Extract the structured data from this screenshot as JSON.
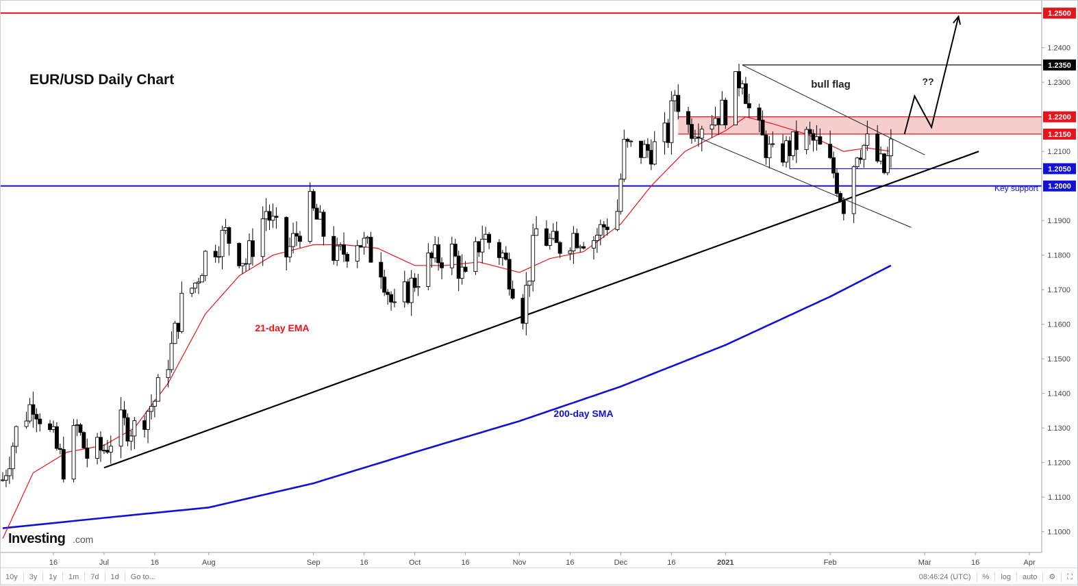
{
  "chart_data": {
    "type": "candlestick",
    "title": "EUR/USD Daily Chart",
    "y_axis": {
      "ticks": [
        "1.1000",
        "1.1100",
        "1.1200",
        "1.1300",
        "1.1400",
        "1.1500",
        "1.1600",
        "1.1700",
        "1.1800",
        "1.1900",
        "1.2100",
        "1.2300",
        "1.2400"
      ],
      "ylim": [
        1.094,
        1.253
      ]
    },
    "x_axis": {
      "ticks": [
        {
          "label": "16",
          "date": "2020-06-16"
        },
        {
          "label": "Jul",
          "date": "2020-07-01"
        },
        {
          "label": "16",
          "date": "2020-07-16"
        },
        {
          "label": "Aug",
          "date": "2020-08-01"
        },
        {
          "label": "Sep",
          "date": "2020-09-01"
        },
        {
          "label": "16",
          "date": "2020-09-16"
        },
        {
          "label": "Oct",
          "date": "2020-10-01"
        },
        {
          "label": "16",
          "date": "2020-10-16"
        },
        {
          "label": "Nov",
          "date": "2020-11-01"
        },
        {
          "label": "16",
          "date": "2020-11-16"
        },
        {
          "label": "Dec",
          "date": "2020-12-01"
        },
        {
          "label": "16",
          "date": "2020-12-16"
        },
        {
          "label": "2021",
          "date": "2021-01-01"
        },
        {
          "label": "Feb",
          "date": "2021-02-01"
        },
        {
          "label": "Mar",
          "date": "2021-03-01"
        },
        {
          "label": "16",
          "date": "2021-03-16"
        },
        {
          "label": "Apr",
          "date": "2021-04-01"
        }
      ],
      "xlim": [
        "2020-06-01",
        "2021-04-02"
      ]
    },
    "close_anchors": [
      [
        "2020-06-01",
        1.115
      ],
      [
        "2020-06-05",
        1.129
      ],
      [
        "2020-06-10",
        1.138
      ],
      [
        "2020-06-16",
        1.126
      ],
      [
        "2020-06-19",
        1.119
      ],
      [
        "2020-06-23",
        1.13
      ],
      [
        "2020-06-26",
        1.122
      ],
      [
        "2020-07-01",
        1.124
      ],
      [
        "2020-07-06",
        1.131
      ],
      [
        "2020-07-10",
        1.13
      ],
      [
        "2020-07-16",
        1.138
      ],
      [
        "2020-07-21",
        1.153
      ],
      [
        "2020-07-24",
        1.166
      ],
      [
        "2020-07-28",
        1.172
      ],
      [
        "2020-07-31",
        1.18
      ],
      [
        "2020-08-06",
        1.186
      ],
      [
        "2020-08-12",
        1.178
      ],
      [
        "2020-08-18",
        1.193
      ],
      [
        "2020-08-24",
        1.18
      ],
      [
        "2020-08-31",
        1.194
      ],
      [
        "2020-09-01",
        1.192
      ],
      [
        "2020-09-08",
        1.179
      ],
      [
        "2020-09-14",
        1.185
      ],
      [
        "2020-09-21",
        1.177
      ],
      [
        "2020-09-25",
        1.163
      ],
      [
        "2020-09-29",
        1.17
      ],
      [
        "2020-10-05",
        1.178
      ],
      [
        "2020-10-12",
        1.181
      ],
      [
        "2020-10-16",
        1.172
      ],
      [
        "2020-10-21",
        1.186
      ],
      [
        "2020-10-27",
        1.18
      ],
      [
        "2020-11-02",
        1.164
      ],
      [
        "2020-11-06",
        1.187
      ],
      [
        "2020-11-12",
        1.182
      ],
      [
        "2020-11-17",
        1.186
      ],
      [
        "2020-11-23",
        1.185
      ],
      [
        "2020-11-30",
        1.193
      ],
      [
        "2020-12-02",
        1.211
      ],
      [
        "2020-12-08",
        1.21
      ],
      [
        "2020-12-11",
        1.211
      ],
      [
        "2020-12-15",
        1.215
      ],
      [
        "2020-12-17",
        1.227
      ],
      [
        "2020-12-21",
        1.217
      ],
      [
        "2020-12-28",
        1.22
      ],
      [
        "2021-01-01",
        1.222
      ],
      [
        "2021-01-06",
        1.233
      ],
      [
        "2021-01-08",
        1.222
      ],
      [
        "2021-01-11",
        1.215
      ],
      [
        "2021-01-15",
        1.208
      ],
      [
        "2021-01-20",
        1.211
      ],
      [
        "2021-01-25",
        1.214
      ],
      [
        "2021-01-28",
        1.212
      ],
      [
        "2021-02-02",
        1.204
      ],
      [
        "2021-02-05",
        1.195
      ],
      [
        "2021-02-09",
        1.211
      ],
      [
        "2021-02-12",
        1.212
      ],
      [
        "2021-02-17",
        1.204
      ],
      [
        "2021-02-19",
        1.211
      ]
    ],
    "ema21_anchors": [
      [
        "2020-06-01",
        1.098
      ],
      [
        "2020-06-10",
        1.117
      ],
      [
        "2020-06-20",
        1.123
      ],
      [
        "2020-07-01",
        1.125
      ],
      [
        "2020-07-10",
        1.13
      ],
      [
        "2020-07-20",
        1.143
      ],
      [
        "2020-07-31",
        1.163
      ],
      [
        "2020-08-10",
        1.174
      ],
      [
        "2020-08-20",
        1.18
      ],
      [
        "2020-09-01",
        1.183
      ],
      [
        "2020-09-10",
        1.183
      ],
      [
        "2020-09-20",
        1.182
      ],
      [
        "2020-10-01",
        1.177
      ],
      [
        "2020-10-10",
        1.177
      ],
      [
        "2020-10-20",
        1.178
      ],
      [
        "2020-11-01",
        1.175
      ],
      [
        "2020-11-10",
        1.179
      ],
      [
        "2020-11-20",
        1.181
      ],
      [
        "2020-12-01",
        1.189
      ],
      [
        "2020-12-10",
        1.2
      ],
      [
        "2020-12-20",
        1.21
      ],
      [
        "2021-01-01",
        1.216
      ],
      [
        "2021-01-07",
        1.22
      ],
      [
        "2021-01-15",
        1.218
      ],
      [
        "2021-01-25",
        1.215
      ],
      [
        "2021-02-05",
        1.21
      ],
      [
        "2021-02-12",
        1.211
      ],
      [
        "2021-02-19",
        1.21
      ]
    ],
    "sma200_anchors": [
      [
        "2020-06-01",
        1.101
      ],
      [
        "2020-07-01",
        1.104
      ],
      [
        "2020-08-01",
        1.107
      ],
      [
        "2020-09-01",
        1.114
      ],
      [
        "2020-10-01",
        1.123
      ],
      [
        "2020-11-01",
        1.132
      ],
      [
        "2020-12-01",
        1.142
      ],
      [
        "2021-01-01",
        1.154
      ],
      [
        "2021-02-01",
        1.168
      ],
      [
        "2021-02-19",
        1.177
      ]
    ],
    "lines": [
      {
        "name": "1.2500",
        "value": 1.25,
        "style": "red"
      },
      {
        "name": "1.2350",
        "value": 1.235,
        "style": "black-thin"
      },
      {
        "name": "1.2200",
        "value": 1.22,
        "style": "zone"
      },
      {
        "name": "1.2150",
        "value": 1.215,
        "style": "zone"
      },
      {
        "name": "1.2050",
        "value": 1.205,
        "style": "blue-thin"
      },
      {
        "name": "1.2000",
        "value": 1.2,
        "style": "blue"
      }
    ],
    "resistance_zone": [
      1.215,
      1.22
    ],
    "trendline": {
      "from": [
        "2020-07-01",
        1.1185
      ],
      "to": [
        "2021-03-17",
        1.21
      ]
    },
    "flag_upper": {
      "from": [
        "2021-01-06",
        1.235
      ],
      "to": [
        "2021-03-01",
        1.209
      ]
    },
    "flag_lower": {
      "from": [
        "2020-12-24",
        1.214
      ],
      "to": [
        "2021-02-25",
        1.188
      ]
    },
    "projection": [
      [
        "2021-02-23",
        1.215
      ],
      [
        "2021-02-26",
        1.226
      ],
      [
        "2021-03-03",
        1.217
      ],
      [
        "2021-03-11",
        1.249
      ]
    ],
    "annotations": {
      "ema_label": "21-day EMA",
      "sma_label": "200-day SMA",
      "bull_flag": "bull flag",
      "question": "??",
      "key_support": "Key support"
    },
    "price_labels": [
      "1.2500",
      "1.2350",
      "1.2200",
      "1.2150",
      "1.2050",
      "1.2000"
    ]
  },
  "brand": {
    "name": "Investing",
    "suffix": ".com"
  },
  "bottom_bar": {
    "ranges": [
      "10y",
      "3y",
      "1y",
      "1m",
      "7d",
      "1d"
    ],
    "goto": "Go to...",
    "time": "08:46:24 (UTC)",
    "percent": "%",
    "log": "log",
    "auto": "auto"
  },
  "colors": {
    "red": "#e8141b",
    "blue": "#1010d6",
    "zone": "#f6c5c4",
    "black": "#000000"
  }
}
